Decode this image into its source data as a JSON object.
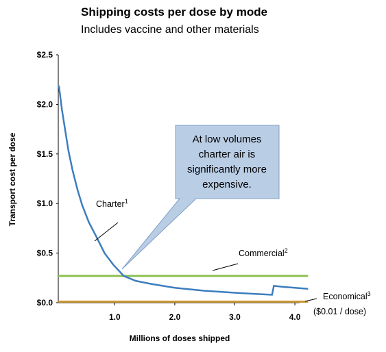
{
  "chart_data": {
    "type": "line",
    "title": "Shipping costs per dose by mode",
    "subtitle": "Includes vaccine and other materials",
    "x_label": "Millions of doses shipped",
    "y_label": "Transport cost per dose",
    "xlim": [
      0.06,
      4.25
    ],
    "ylim": [
      0,
      2.5
    ],
    "xticks": [
      {
        "value": 1,
        "label": "1.0"
      },
      {
        "value": 2,
        "label": "2.0"
      },
      {
        "value": 3,
        "label": "3.0"
      },
      {
        "value": 4,
        "label": "4.0"
      }
    ],
    "yticks": [
      {
        "value": 0,
        "label": "$0.0"
      },
      {
        "value": 0.5,
        "label": "$0.5"
      },
      {
        "value": 1,
        "label": "$1.0"
      },
      {
        "value": 1.5,
        "label": "$1.5"
      },
      {
        "value": 2,
        "label": "$2.0"
      },
      {
        "value": 2.5,
        "label": "$2.5"
      }
    ],
    "series": [
      {
        "name": "Charter",
        "color": "#3c7dbf",
        "x": [
          0.07,
          0.12,
          0.18,
          0.23,
          0.3,
          0.38,
          0.46,
          0.57,
          0.69,
          0.83,
          0.98,
          1.15,
          1.35,
          1.6,
          2.0,
          2.5,
          3.0,
          3.6,
          3.62,
          3.65,
          3.8,
          4.0,
          4.22
        ],
        "values": [
          2.19,
          1.95,
          1.72,
          1.53,
          1.33,
          1.14,
          0.98,
          0.81,
          0.67,
          0.5,
          0.38,
          0.27,
          0.22,
          0.19,
          0.15,
          0.12,
          0.1,
          0.08,
          0.08,
          0.17,
          0.16,
          0.15,
          0.14
        ]
      },
      {
        "name": "Commercial",
        "color": "#8cc152",
        "x": [
          0.06,
          4.22
        ],
        "values": [
          0.27,
          0.27
        ]
      },
      {
        "name": "Economical",
        "color": "#c8952f",
        "x": [
          0.06,
          4.22
        ],
        "values": [
          0.01,
          0.01
        ]
      }
    ],
    "annotations": [
      {
        "text": "Charter",
        "sup": "1"
      },
      {
        "text": "Commercial",
        "sup": "2"
      },
      {
        "text": "Economical",
        "sup": "3",
        "note": "($0.01 / dose)"
      }
    ],
    "callout": [
      "At low volumes",
      "charter air is",
      "significantly more",
      "expensive."
    ]
  }
}
